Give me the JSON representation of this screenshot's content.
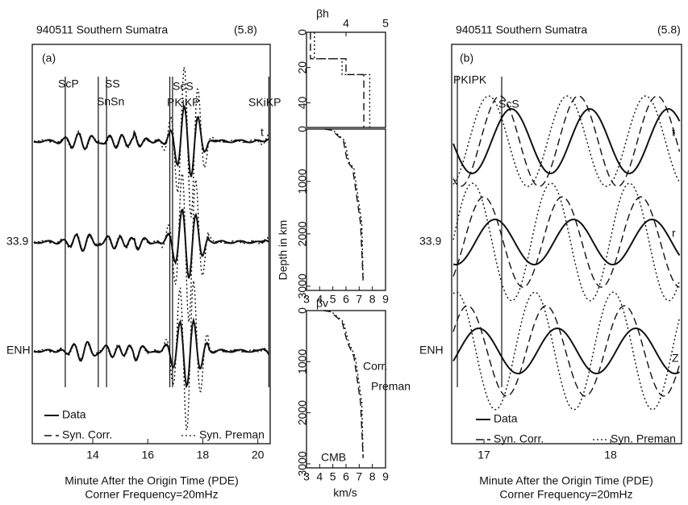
{
  "panel_a": {
    "title": "940511 Southern Sumatra",
    "magnitude": "(5.8)",
    "label": "(a)",
    "phases": [
      {
        "name": "ScP",
        "time": 13.0
      },
      {
        "name": "SS",
        "time": 14.2
      },
      {
        "name": "SnSn",
        "time": 14.5
      },
      {
        "name": "ScS",
        "time": 16.8
      },
      {
        "name": "PKiKP",
        "time": 16.9
      },
      {
        "name": "SKiKP",
        "time": 20.4
      }
    ],
    "stations": [
      "33.9",
      "ENH"
    ],
    "components": [
      "t"
    ],
    "legend": [
      "Data",
      "Syn. Corr.",
      "Syn. Preman"
    ],
    "xlim": [
      11.8,
      20.45
    ],
    "xticks": [
      14,
      16,
      18,
      20
    ],
    "xlabel": "Minute After the Origin Time (PDE)",
    "note": "Corner Frequency=20mHz"
  },
  "panel_b": {
    "title": "940511 Southern Sumatra",
    "magnitude": "(5.8)",
    "label": "(b)",
    "phases": [
      {
        "name": "PKIPK",
        "time": 16.79
      },
      {
        "name": "ScS",
        "time": 17.14
      }
    ],
    "stations": [
      "33.9",
      "ENH"
    ],
    "components": [
      "t",
      "r",
      "Z"
    ],
    "legend": [
      "Data",
      "Syn. Corr.",
      "Syn. Preman"
    ],
    "xlim": [
      16.745,
      18.56
    ],
    "xticks": [
      17,
      18
    ],
    "xlabel": "Minute After the Origin Time (PDE)",
    "note": "Corner Frequency=20mHz"
  },
  "velocity": {
    "ylabel": "Depth in km",
    "xlabel": "km/s",
    "panels": [
      {
        "label": "βh",
        "xlim": [
          3,
          5
        ],
        "xticks": [
          4,
          5
        ],
        "ylim": [
          0,
          54
        ],
        "yticks": [
          0,
          20,
          40
        ],
        "profiles": [
          {
            "name": "Corr.",
            "velocity": [
              3.1,
              3.1,
              4.0,
              4.0,
              4.45,
              4.45
            ],
            "depth": [
              0,
              15,
              15,
              24,
              24,
              54
            ]
          },
          {
            "name": "Preman",
            "velocity": [
              3.2,
              3.2,
              3.9,
              3.9,
              4.6,
              4.6
            ],
            "depth": [
              0,
              15,
              15,
              24,
              24,
              54
            ]
          }
        ]
      },
      {
        "label": null,
        "xlim": [
          3,
          9
        ],
        "xticks": [
          3,
          4,
          5,
          6,
          7,
          8,
          9
        ],
        "ylim": [
          0,
          3080
        ],
        "yticks": [
          0,
          1000,
          2000,
          3000
        ],
        "profiles": [
          {
            "name": "Corr.",
            "velocity": [
              4.4,
              4.9,
              5.8,
              6.1,
              6.5,
              7.1,
              7.3
            ],
            "depth": [
              0,
              20,
              220,
              620,
              750,
              1800,
              2890
            ]
          },
          {
            "name": "Preman",
            "velocity": [
              4.5,
              5.0,
              5.9,
              6.2,
              6.6,
              7.2,
              7.3
            ],
            "depth": [
              0,
              20,
              220,
              620,
              750,
              1800,
              2890
            ]
          }
        ]
      },
      {
        "label": "βv",
        "xlim": [
          3,
          9
        ],
        "xticks": [
          3,
          4,
          5,
          6,
          7,
          8,
          9
        ],
        "ylim": [
          0,
          3080
        ],
        "yticks": [
          0,
          1000,
          2000,
          3000
        ],
        "profiles": [
          {
            "name": "Corr.",
            "velocity": [
              4.3,
              4.8,
              5.7,
              6.1,
              6.6,
              7.1,
              7.3
            ],
            "depth": [
              0,
              20,
              220,
              620,
              900,
              1800,
              2890
            ]
          },
          {
            "name": "Preman",
            "velocity": [
              4.4,
              4.9,
              5.8,
              6.2,
              6.7,
              7.2,
              7.3
            ],
            "depth": [
              0,
              20,
              220,
              620,
              900,
              1800,
              2890
            ]
          }
        ],
        "legend": [
          "Corr.",
          "Preman"
        ],
        "annotation": "CMB"
      }
    ]
  }
}
